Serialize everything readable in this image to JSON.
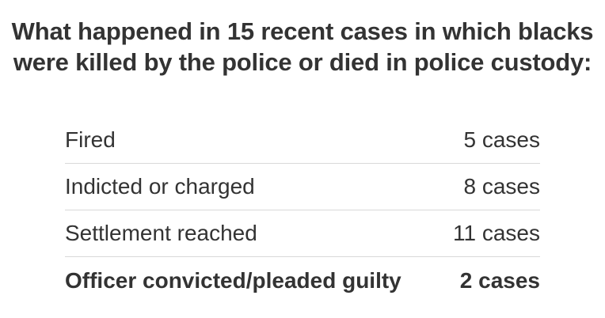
{
  "title": {
    "line1": "What happened in 15 recent cases in which blacks",
    "line2": "were killed by the police or died in police custody:"
  },
  "rows": [
    {
      "label": "Fired",
      "value": "5 cases"
    },
    {
      "label": "Indicted or charged",
      "value": "8 cases"
    },
    {
      "label": "Settlement reached",
      "value": "11 cases"
    },
    {
      "label": "Officer convicted/pleaded guilty",
      "value": "2 cases"
    }
  ]
}
